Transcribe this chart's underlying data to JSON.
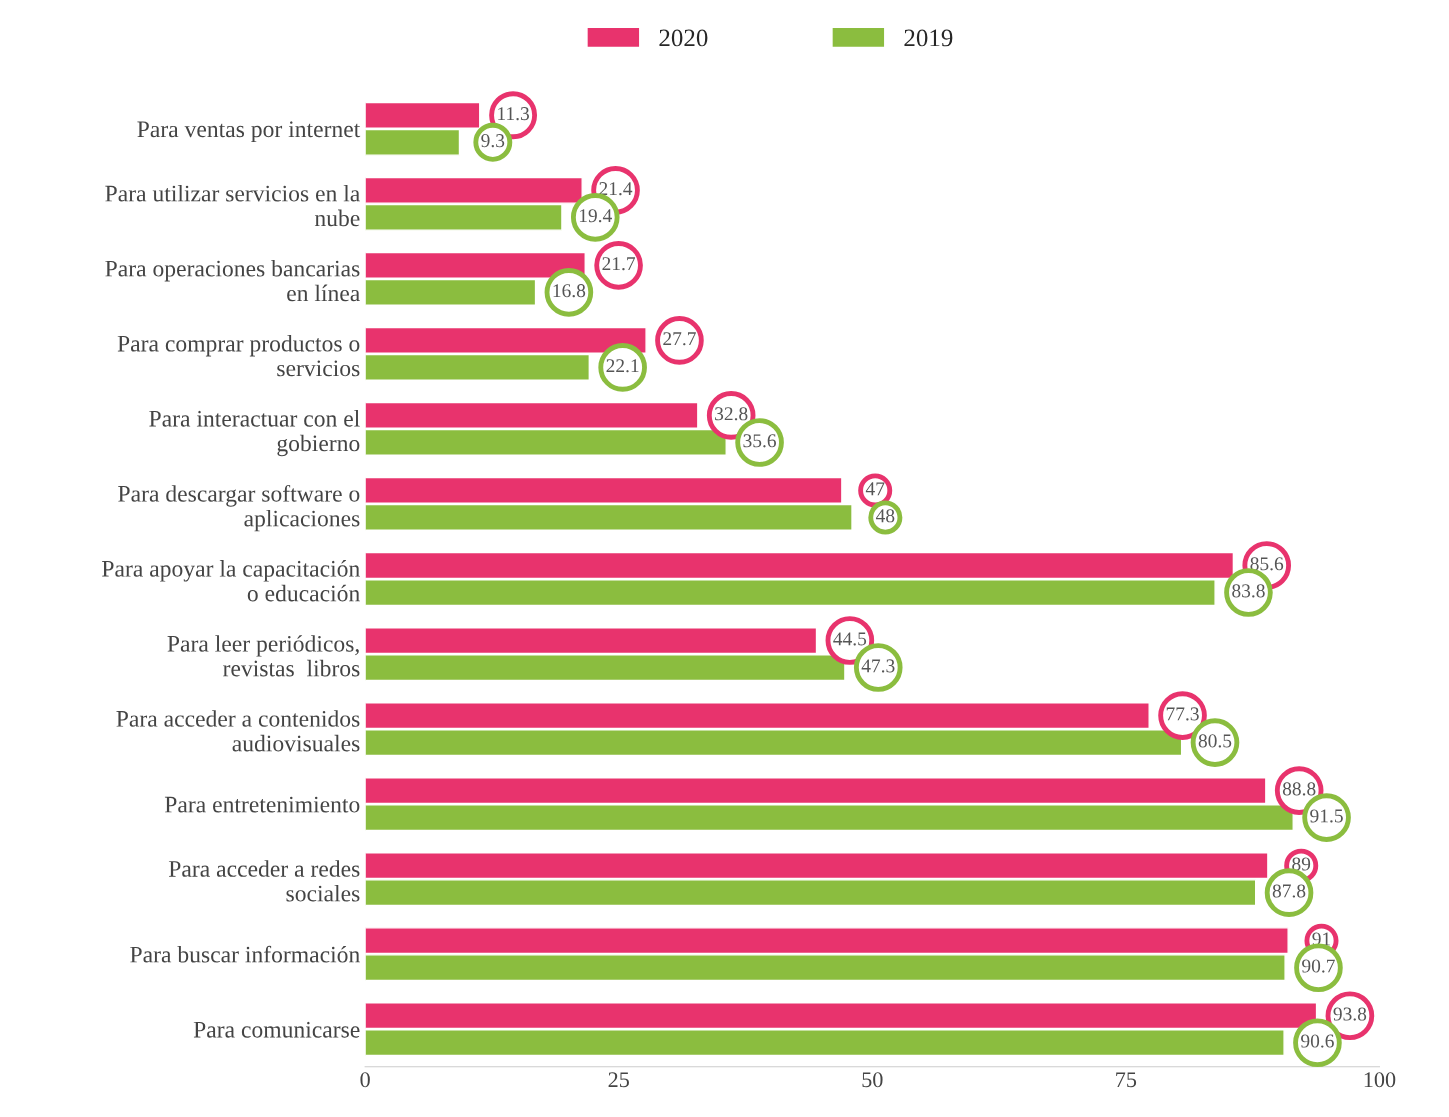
{
  "chart_data": {
    "type": "bar",
    "orientation": "horizontal",
    "categories": [
      "Para ventas por internet",
      "Para utilizar servicios en la\nnube",
      "Para operaciones bancarias\nen línea",
      "Para comprar productos o\nservicios",
      "Para interactuar con el\ngobierno",
      "Para descargar software o\naplicaciones",
      "Para apoyar la capacitación\no educación",
      "Para leer periódicos,\nrevistas  libros",
      "Para acceder a contenidos\naudiovisuales",
      "Para entretenimiento",
      "Para acceder a redes\nsociales",
      "Para buscar información",
      "Para comunicarse"
    ],
    "series": [
      {
        "name": "2020",
        "color": "#e8336d",
        "values": [
          11.3,
          21.4,
          21.7,
          27.7,
          32.8,
          47,
          85.6,
          44.5,
          77.3,
          88.8,
          89,
          91,
          93.8
        ]
      },
      {
        "name": "2019",
        "color": "#8bbd3f",
        "values": [
          9.3,
          19.4,
          16.8,
          22.1,
          35.6,
          48,
          83.8,
          47.3,
          80.5,
          91.5,
          87.8,
          90.7,
          90.6
        ]
      }
    ],
    "xlim": [
      0,
      100
    ],
    "xticks": [
      0,
      25,
      50,
      75,
      100
    ],
    "data_labels": true,
    "legend": "top",
    "grid": false
  }
}
